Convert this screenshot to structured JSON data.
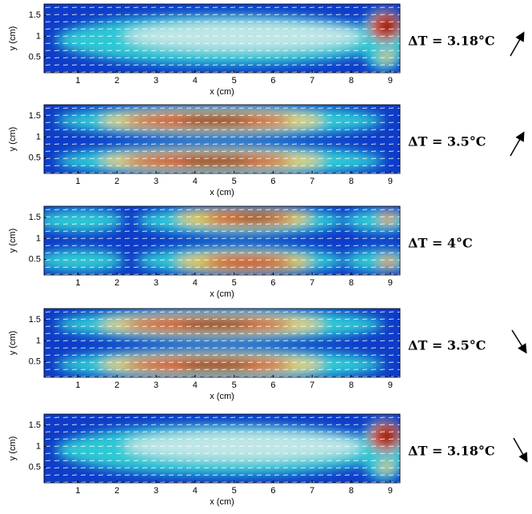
{
  "panels": [
    {
      "xlabel": "x (cm)",
      "ylabel": "y (cm)",
      "xlim": [
        0.13,
        9.25
      ],
      "ylim": [
        0.13,
        1.77
      ],
      "xticks": [
        1,
        2,
        3,
        4,
        5,
        6,
        7,
        8,
        9
      ],
      "yticks": [
        0.5,
        1,
        1.5
      ],
      "label": "ΔT = 3.18°C"
    },
    {
      "xlabel": "x (cm)",
      "ylabel": "y (cm)",
      "xlim": [
        0.13,
        9.25
      ],
      "ylim": [
        0.13,
        1.77
      ],
      "xticks": [
        1,
        2,
        3,
        4,
        5,
        6,
        7,
        8,
        9
      ],
      "yticks": [
        0.5,
        1,
        1.5
      ],
      "label": "ΔT = 3.5°C"
    },
    {
      "xlabel": "x (cm)",
      "ylabel": "y (cm)",
      "xlim": [
        0.13,
        9.25
      ],
      "ylim": [
        0.13,
        1.77
      ],
      "xticks": [
        1,
        2,
        3,
        4,
        5,
        6,
        7,
        8,
        9
      ],
      "yticks": [
        0.5,
        1,
        1.5
      ],
      "label": "ΔT = 4°C"
    },
    {
      "xlabel": "x (cm)",
      "ylabel": "y (cm)",
      "xlim": [
        0.13,
        9.25
      ],
      "ylim": [
        0.13,
        1.77
      ],
      "xticks": [
        1,
        2,
        3,
        4,
        5,
        6,
        7,
        8,
        9
      ],
      "yticks": [
        0.5,
        1,
        1.5
      ],
      "label": "ΔT = 3.5°C"
    },
    {
      "xlabel": "x (cm)",
      "ylabel": "y (cm)",
      "xlim": [
        0.13,
        9.25
      ],
      "ylim": [
        0.13,
        1.77
      ],
      "xticks": [
        1,
        2,
        3,
        4,
        5,
        6,
        7,
        8,
        9
      ],
      "yticks": [
        0.5,
        1,
        1.5
      ],
      "label": "ΔT = 3.18°C"
    }
  ]
}
